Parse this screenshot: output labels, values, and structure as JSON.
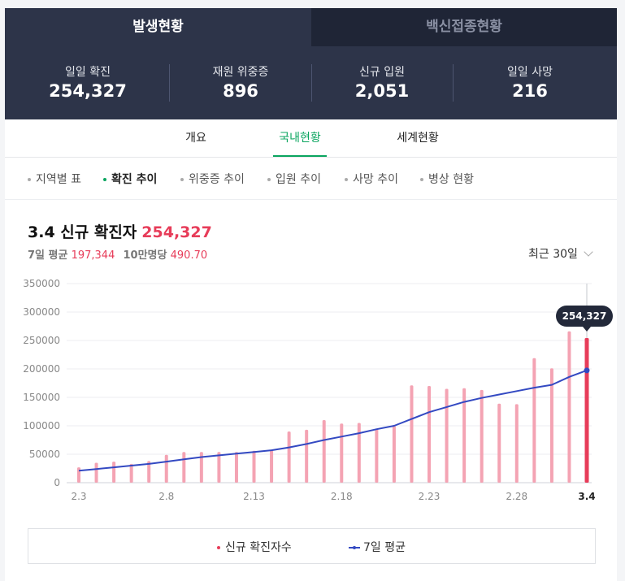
{
  "top_tabs": {
    "active": "발생현황",
    "inactive": "백신접종현황"
  },
  "stats": [
    {
      "label": "일일 확진",
      "value": "254,327"
    },
    {
      "label": "재원 위중증",
      "value": "896"
    },
    {
      "label": "신규 입원",
      "value": "2,051"
    },
    {
      "label": "일일 사망",
      "value": "216"
    }
  ],
  "sub_tabs": [
    "개요",
    "국내현황",
    "세계현황"
  ],
  "filters": [
    "지역별 표",
    "확진 추이",
    "위중증 추이",
    "입원 추이",
    "사망 추이",
    "병상 현황"
  ],
  "header": {
    "title": "3.4 신규 확진자",
    "title_value": "254,327",
    "avg_label": "7일 평균",
    "avg_value": "197,344",
    "per100k_label": "10만명당",
    "per100k_value": "490.70",
    "period": "최근 30일"
  },
  "colors": {
    "bar": "#f4a3b3",
    "bar_highlight": "#e73c59",
    "line": "#3349c2",
    "tooltip": "#23293a"
  },
  "chart_data": {
    "type": "bar",
    "categories": [
      "2.3",
      "2.4",
      "2.5",
      "2.6",
      "2.7",
      "2.8",
      "2.9",
      "2.10",
      "2.11",
      "2.12",
      "2.13",
      "2.14",
      "2.15",
      "2.16",
      "2.17",
      "2.18",
      "2.19",
      "2.20",
      "2.21",
      "2.22",
      "2.23",
      "2.24",
      "2.25",
      "2.26",
      "2.27",
      "2.28",
      "3.1",
      "3.2",
      "3.3",
      "3.4"
    ],
    "x_tick_labels": [
      "2.3",
      "2.8",
      "2.13",
      "2.18",
      "2.23",
      "2.28",
      "3.4"
    ],
    "series": [
      {
        "name": "신규 확진자수",
        "type": "bar",
        "values": [
          27000,
          35000,
          37000,
          33000,
          38000,
          49000,
          54000,
          54000,
          54000,
          54000,
          56000,
          57000,
          90000,
          93000,
          110000,
          104000,
          105000,
          95000,
          100000,
          171000,
          170000,
          165000,
          166000,
          163000,
          139000,
          138000,
          219000,
          201000,
          266000,
          254327
        ]
      },
      {
        "name": "7일 평균",
        "type": "line",
        "values": [
          21000,
          24000,
          27000,
          30000,
          33000,
          37000,
          41000,
          45000,
          48000,
          51000,
          54000,
          57000,
          62000,
          68000,
          75000,
          81000,
          87000,
          94000,
          100000,
          112000,
          124000,
          133000,
          142000,
          149000,
          155000,
          161000,
          167000,
          172000,
          186000,
          197344
        ]
      }
    ],
    "tooltip": {
      "category": "3.4",
      "value": "254,327"
    },
    "ylim": [
      0,
      350000
    ],
    "y_ticks": [
      0,
      50000,
      100000,
      150000,
      200000,
      250000,
      300000,
      350000
    ],
    "grid": true
  }
}
